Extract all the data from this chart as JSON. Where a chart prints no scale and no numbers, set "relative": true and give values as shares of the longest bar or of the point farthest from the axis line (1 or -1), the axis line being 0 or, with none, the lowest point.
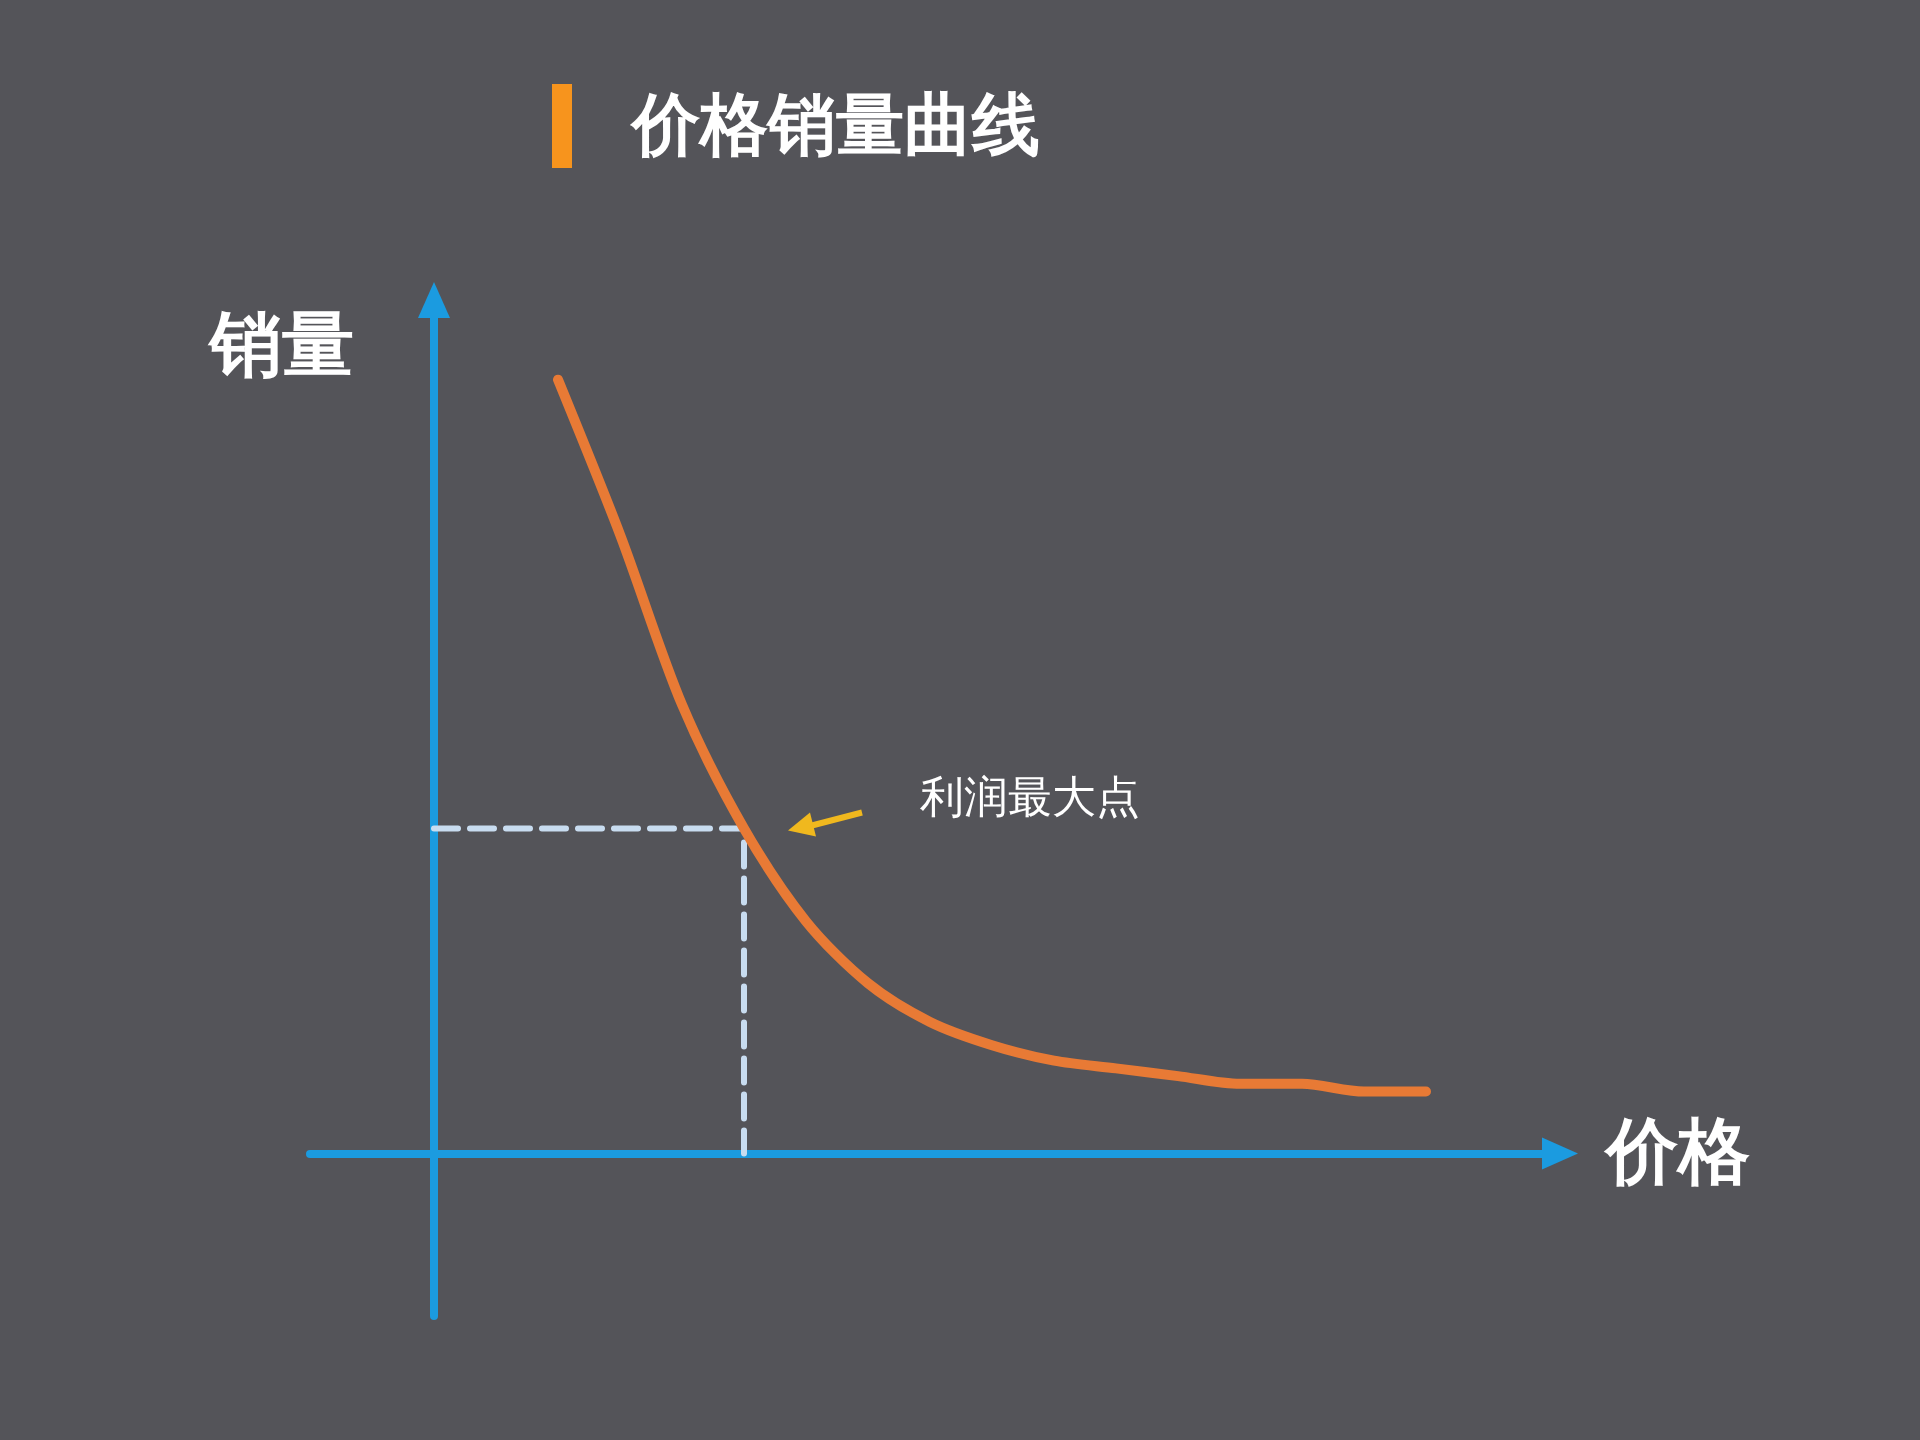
{
  "chart_data": {
    "type": "line",
    "title": "价格销量曲线",
    "xlabel": "价格",
    "ylabel": "销量",
    "relative": true,
    "marker": "none",
    "categories": [
      null,
      null,
      null,
      null,
      null,
      null,
      null,
      null,
      null,
      null,
      null,
      null,
      null,
      null,
      null,
      null,
      null,
      null,
      null,
      null,
      null
    ],
    "series": [
      {
        "color": "#e87a35",
        "values": [
          null,
          null,
          null,
          null,
          1,
          0.8,
          0.58,
          0.42,
          0.3,
          0.22,
          0.17,
          0.14,
          0.12,
          0.11,
          0.1,
          0.09,
          0.09,
          0.08,
          0.08,
          null,
          null
        ]
      },
      {
        "type": "step",
        "color": "#c8dcf0",
        "line_style": "dashed",
        "values": [
          null,
          null,
          0.42,
          0.42,
          0.42,
          0.42,
          0.42,
          0,
          null,
          null,
          null,
          null,
          null,
          null,
          null,
          null,
          null,
          null,
          null,
          null,
          null
        ]
      }
    ],
    "annotations": [
      "利润最大点"
    ]
  }
}
